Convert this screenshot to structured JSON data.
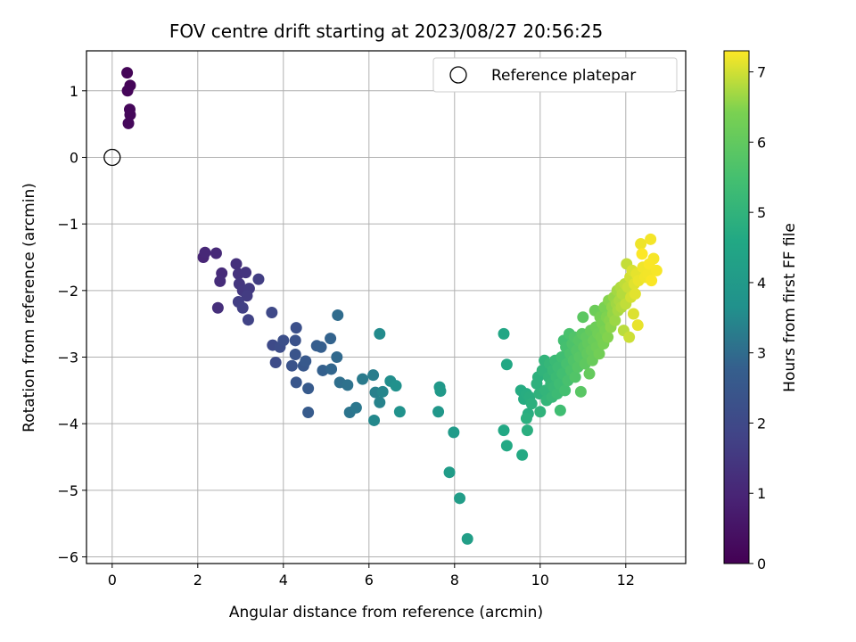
{
  "chart_data": {
    "type": "scatter",
    "title": "FOV centre drift starting at 2023/08/27 20:56:25",
    "xlabel": "Angular distance from reference (arcmin)",
    "ylabel": "Rotation from reference (arcmin)",
    "xlim": [
      -0.6,
      13.4
    ],
    "ylim": [
      -6.1,
      1.6
    ],
    "x_ticks": [
      0,
      2,
      4,
      6,
      8,
      10,
      12
    ],
    "y_ticks": [
      1,
      0,
      -1,
      -2,
      -3,
      -4,
      -5,
      -6
    ],
    "grid": true,
    "legend": {
      "label": "Reference platepar",
      "placement": "top-right"
    },
    "reference": {
      "x": 0,
      "y": 0
    },
    "colorbar": {
      "label": "Hours from first FF file",
      "range": [
        0,
        7.3
      ],
      "ticks": [
        0,
        1,
        2,
        3,
        4,
        5,
        6,
        7
      ],
      "colormap": "viridis"
    },
    "points": [
      [
        0.35,
        1.27,
        0.1
      ],
      [
        0.42,
        1.08,
        0.12
      ],
      [
        0.36,
        1.0,
        0.14
      ],
      [
        0.41,
        0.72,
        0.16
      ],
      [
        0.42,
        0.64,
        0.18
      ],
      [
        0.38,
        0.51,
        0.2
      ],
      [
        2.13,
        -1.5,
        1.0
      ],
      [
        2.17,
        -1.43,
        1.05
      ],
      [
        2.43,
        -1.44,
        1.1
      ],
      [
        2.56,
        -1.74,
        1.15
      ],
      [
        2.52,
        -1.86,
        1.2
      ],
      [
        2.47,
        -2.26,
        1.25
      ],
      [
        2.9,
        -1.6,
        1.3
      ],
      [
        2.95,
        -1.75,
        1.35
      ],
      [
        3.12,
        -1.73,
        1.4
      ],
      [
        2.97,
        -1.9,
        1.45
      ],
      [
        3.05,
        -2.0,
        1.5
      ],
      [
        3.2,
        -1.97,
        1.55
      ],
      [
        3.15,
        -2.08,
        1.6
      ],
      [
        3.42,
        -1.83,
        1.65
      ],
      [
        2.95,
        -2.17,
        1.7
      ],
      [
        3.05,
        -2.26,
        1.75
      ],
      [
        3.18,
        -2.44,
        1.8
      ],
      [
        3.73,
        -2.33,
        2.0
      ],
      [
        3.75,
        -2.82,
        2.05
      ],
      [
        3.82,
        -3.08,
        2.1
      ],
      [
        3.92,
        -2.85,
        2.15
      ],
      [
        4.0,
        -2.75,
        2.2
      ],
      [
        4.3,
        -2.56,
        2.25
      ],
      [
        4.28,
        -2.75,
        2.3
      ],
      [
        4.2,
        -3.13,
        2.35
      ],
      [
        4.28,
        -2.96,
        2.4
      ],
      [
        4.3,
        -3.38,
        2.45
      ],
      [
        4.47,
        -3.13,
        2.5
      ],
      [
        4.52,
        -3.06,
        2.55
      ],
      [
        4.58,
        -3.47,
        2.6
      ],
      [
        4.58,
        -3.83,
        2.65
      ],
      [
        4.78,
        -2.83,
        2.7
      ],
      [
        4.88,
        -2.85,
        2.75
      ],
      [
        4.92,
        -3.2,
        2.8
      ],
      [
        5.1,
        -2.72,
        2.85
      ],
      [
        5.12,
        -3.18,
        2.9
      ],
      [
        5.25,
        -3.0,
        2.95
      ],
      [
        5.27,
        -2.37,
        3.0
      ],
      [
        5.32,
        -3.38,
        3.05
      ],
      [
        5.5,
        -3.42,
        3.1
      ],
      [
        5.55,
        -3.83,
        3.15
      ],
      [
        5.7,
        -3.76,
        3.2
      ],
      [
        5.85,
        -3.33,
        3.25
      ],
      [
        6.1,
        -3.27,
        3.3
      ],
      [
        6.15,
        -3.53,
        3.35
      ],
      [
        6.25,
        -3.68,
        3.4
      ],
      [
        6.32,
        -3.52,
        3.45
      ],
      [
        6.12,
        -3.95,
        3.5
      ],
      [
        6.25,
        -2.65,
        3.55
      ],
      [
        6.5,
        -3.36,
        3.6
      ],
      [
        6.63,
        -3.43,
        3.65
      ],
      [
        6.72,
        -3.82,
        3.7
      ],
      [
        7.62,
        -3.82,
        3.9
      ],
      [
        7.65,
        -3.45,
        3.95
      ],
      [
        7.67,
        -3.51,
        4.0
      ],
      [
        7.98,
        -4.13,
        4.05
      ],
      [
        7.88,
        -4.73,
        4.1
      ],
      [
        8.12,
        -5.12,
        4.15
      ],
      [
        8.3,
        -5.73,
        4.2
      ],
      [
        9.15,
        -2.65,
        4.5
      ],
      [
        9.22,
        -3.11,
        4.55
      ],
      [
        9.15,
        -4.1,
        4.6
      ],
      [
        9.22,
        -4.33,
        4.62
      ],
      [
        9.58,
        -4.47,
        4.65
      ],
      [
        9.55,
        -3.5,
        4.7
      ],
      [
        9.62,
        -3.63,
        4.72
      ],
      [
        9.68,
        -3.55,
        4.75
      ],
      [
        9.72,
        -3.85,
        4.78
      ],
      [
        9.75,
        -3.6,
        4.8
      ],
      [
        9.7,
        -4.1,
        4.82
      ],
      [
        9.68,
        -3.92,
        4.85
      ],
      [
        9.8,
        -3.7,
        4.88
      ],
      [
        9.92,
        -3.4,
        4.9
      ],
      [
        9.95,
        -3.3,
        4.92
      ],
      [
        9.98,
        -3.55,
        4.95
      ],
      [
        10.0,
        -3.82,
        4.98
      ],
      [
        10.05,
        -3.2,
        5.0
      ],
      [
        10.1,
        -3.05,
        5.02
      ],
      [
        10.12,
        -3.5,
        5.05
      ],
      [
        10.15,
        -3.65,
        5.08
      ],
      [
        10.2,
        -3.3,
        5.1
      ],
      [
        10.22,
        -3.1,
        5.12
      ],
      [
        10.25,
        -3.4,
        5.15
      ],
      [
        10.28,
        -3.6,
        5.18
      ],
      [
        10.3,
        -3.2,
        5.2
      ],
      [
        10.32,
        -3.45,
        5.22
      ],
      [
        10.35,
        -3.05,
        5.25
      ],
      [
        10.38,
        -3.3,
        5.28
      ],
      [
        10.4,
        -3.55,
        5.3
      ],
      [
        10.42,
        -3.15,
        5.32
      ],
      [
        10.45,
        -3.4,
        5.35
      ],
      [
        10.47,
        -3.8,
        5.38
      ],
      [
        10.5,
        -3.0,
        5.4
      ],
      [
        10.52,
        -3.25,
        5.42
      ],
      [
        10.55,
        -2.75,
        5.45
      ],
      [
        10.58,
        -3.5,
        5.48
      ],
      [
        10.6,
        -2.85,
        5.5
      ],
      [
        10.62,
        -3.1,
        5.52
      ],
      [
        10.65,
        -3.35,
        5.55
      ],
      [
        10.68,
        -2.65,
        5.58
      ],
      [
        10.7,
        -2.95,
        5.6
      ],
      [
        10.72,
        -3.2,
        5.62
      ],
      [
        10.75,
        -2.8,
        5.65
      ],
      [
        10.78,
        -3.05,
        5.68
      ],
      [
        10.8,
        -2.7,
        5.7
      ],
      [
        10.82,
        -3.3,
        5.72
      ],
      [
        10.85,
        -2.9,
        5.75
      ],
      [
        10.88,
        -3.15,
        5.78
      ],
      [
        10.9,
        -2.75,
        5.8
      ],
      [
        10.92,
        -3.0,
        5.82
      ],
      [
        10.95,
        -3.52,
        5.85
      ],
      [
        10.98,
        -2.65,
        5.88
      ],
      [
        11.0,
        -2.4,
        5.9
      ],
      [
        11.02,
        -2.85,
        5.92
      ],
      [
        11.05,
        -3.1,
        5.95
      ],
      [
        11.08,
        -2.7,
        5.98
      ],
      [
        11.1,
        -2.95,
        6.0
      ],
      [
        11.12,
        -2.8,
        6.02
      ],
      [
        11.15,
        -3.25,
        6.05
      ],
      [
        11.18,
        -2.6,
        6.08
      ],
      [
        11.2,
        -2.9,
        6.1
      ],
      [
        11.22,
        -3.05,
        6.12
      ],
      [
        11.25,
        -2.75,
        6.15
      ],
      [
        11.28,
        -2.3,
        6.18
      ],
      [
        11.3,
        -2.55,
        6.2
      ],
      [
        11.32,
        -2.85,
        6.22
      ],
      [
        11.35,
        -2.65,
        6.25
      ],
      [
        11.38,
        -2.95,
        6.28
      ],
      [
        11.4,
        -2.4,
        6.3
      ],
      [
        11.42,
        -2.7,
        6.32
      ],
      [
        11.45,
        -2.5,
        6.35
      ],
      [
        11.48,
        -2.8,
        6.38
      ],
      [
        11.5,
        -2.25,
        6.4
      ],
      [
        11.52,
        -2.6,
        6.42
      ],
      [
        11.55,
        -2.4,
        6.45
      ],
      [
        11.58,
        -2.7,
        6.48
      ],
      [
        11.6,
        -2.15,
        6.5
      ],
      [
        11.62,
        -2.45,
        6.52
      ],
      [
        11.65,
        -2.55,
        6.55
      ],
      [
        11.68,
        -2.25,
        6.58
      ],
      [
        11.7,
        -2.35,
        6.6
      ],
      [
        11.72,
        -2.1,
        6.62
      ],
      [
        11.75,
        -2.45,
        6.65
      ],
      [
        11.78,
        -2.2,
        6.68
      ],
      [
        11.8,
        -2.0,
        6.7
      ],
      [
        11.82,
        -2.3,
        6.72
      ],
      [
        11.85,
        -2.15,
        6.75
      ],
      [
        11.88,
        -1.95,
        6.78
      ],
      [
        11.9,
        -2.25,
        6.8
      ],
      [
        11.92,
        -2.05,
        6.82
      ],
      [
        11.95,
        -2.6,
        6.85
      ],
      [
        11.98,
        -1.9,
        6.88
      ],
      [
        12.0,
        -2.2,
        6.9
      ],
      [
        12.02,
        -1.6,
        6.92
      ],
      [
        12.05,
        -1.95,
        6.95
      ],
      [
        12.08,
        -2.7,
        6.97
      ],
      [
        12.1,
        -1.8,
        7.0
      ],
      [
        12.12,
        -2.1,
        7.02
      ],
      [
        12.15,
        -1.7,
        7.05
      ],
      [
        12.18,
        -2.35,
        7.08
      ],
      [
        12.2,
        -1.9,
        7.1
      ],
      [
        12.22,
        -2.05,
        7.12
      ],
      [
        12.25,
        -1.75,
        7.14
      ],
      [
        12.28,
        -2.52,
        7.16
      ],
      [
        12.3,
        -1.85,
        7.18
      ],
      [
        12.35,
        -1.3,
        7.2
      ],
      [
        12.4,
        -1.65,
        7.21
      ],
      [
        12.45,
        -1.8,
        7.22
      ],
      [
        12.52,
        -1.75,
        7.23
      ],
      [
        12.58,
        -1.23,
        7.24
      ],
      [
        12.65,
        -1.52,
        7.25
      ],
      [
        12.72,
        -1.7,
        7.26
      ],
      [
        12.55,
        -1.6,
        7.27
      ],
      [
        12.6,
        -1.85,
        7.28
      ],
      [
        12.38,
        -1.45,
        7.29
      ]
    ]
  }
}
